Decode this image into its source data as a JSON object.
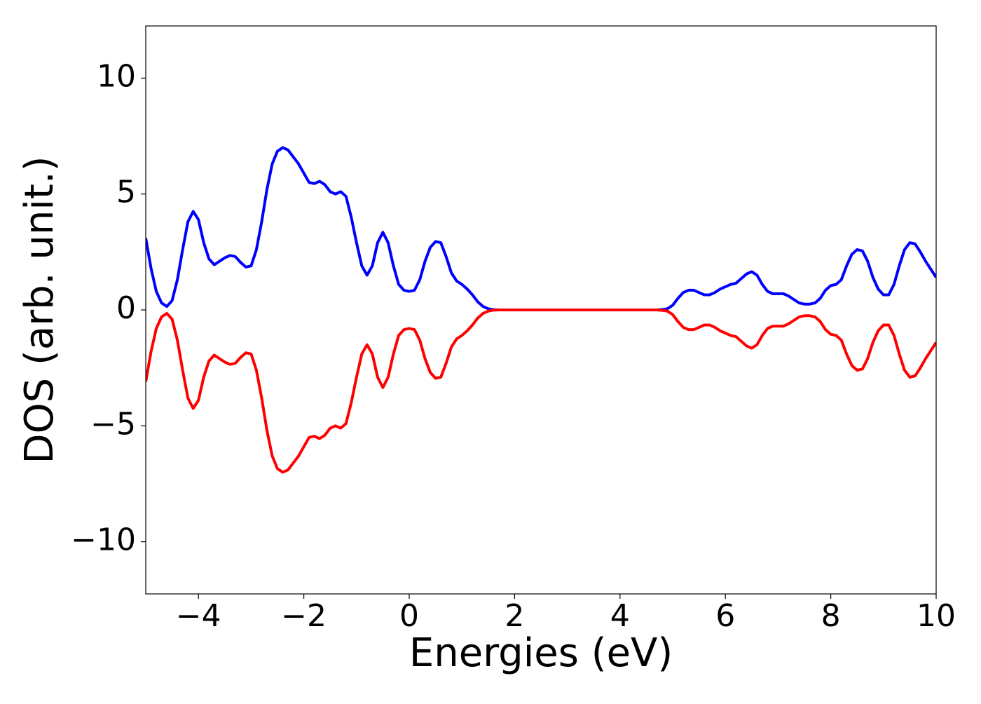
{
  "chart_data": {
    "type": "line",
    "xlabel": "Energies (eV)",
    "ylabel": "DOS (arb. unit.)",
    "x": [
      -5,
      -4.9,
      -4.8,
      -4.7,
      -4.6,
      -4.5,
      -4.4,
      -4.3,
      -4.2,
      -4.1,
      -4,
      -3.9,
      -3.8,
      -3.7,
      -3.6,
      -3.5,
      -3.4,
      -3.3,
      -3.2,
      -3.1,
      -3,
      -2.9,
      -2.8,
      -2.7,
      -2.6,
      -2.5,
      -2.4,
      -2.3,
      -2.2,
      -2.1,
      -2,
      -1.9,
      -1.8,
      -1.7,
      -1.6,
      -1.5,
      -1.4,
      -1.3,
      -1.2,
      -1.1,
      -1,
      -0.9,
      -0.8,
      -0.7,
      -0.6,
      -0.5,
      -0.4,
      -0.3,
      -0.2,
      -0.1,
      0,
      0.1,
      0.2,
      0.3,
      0.4,
      0.5,
      0.6,
      0.7,
      0.8,
      0.9,
      1,
      1.1,
      1.2,
      1.3,
      1.4,
      1.5,
      1.6,
      1.7,
      1.8,
      1.9,
      2,
      2.1,
      2.2,
      2.3,
      2.4,
      2.5,
      2.6,
      2.7,
      2.8,
      2.9,
      3,
      3.1,
      3.2,
      3.3,
      3.4,
      3.5,
      3.6,
      3.7,
      3.8,
      3.9,
      4,
      4.1,
      4.2,
      4.3,
      4.4,
      4.5,
      4.6,
      4.7,
      4.8,
      4.9,
      5,
      5.1,
      5.2,
      5.3,
      5.4,
      5.5,
      5.6,
      5.7,
      5.8,
      5.9,
      6,
      6.1,
      6.2,
      6.3,
      6.4,
      6.5,
      6.6,
      6.7,
      6.8,
      6.9,
      7,
      7.1,
      7.2,
      7.3,
      7.4,
      7.5,
      7.6,
      7.7,
      7.8,
      7.9,
      8,
      8.1,
      8.2,
      8.3,
      8.4,
      8.5,
      8.6,
      8.7,
      8.8,
      8.9,
      9,
      9.1,
      9.2,
      9.3,
      9.4,
      9.5,
      9.6,
      9.7,
      9.8,
      9.9,
      10
    ],
    "series": [
      {
        "color": "#0000ff",
        "values": [
          3.1,
          1.8,
          0.8,
          0.3,
          0.15,
          0.4,
          1.3,
          2.6,
          3.8,
          4.25,
          3.9,
          2.9,
          2.2,
          1.95,
          2.1,
          2.25,
          2.35,
          2.3,
          2.05,
          1.85,
          1.9,
          2.6,
          3.8,
          5.2,
          6.3,
          6.85,
          7.0,
          6.9,
          6.6,
          6.3,
          5.9,
          5.5,
          5.45,
          5.55,
          5.4,
          5.1,
          5.0,
          5.1,
          4.9,
          4.0,
          2.9,
          1.9,
          1.5,
          1.9,
          2.9,
          3.35,
          2.9,
          1.9,
          1.1,
          0.85,
          0.8,
          0.85,
          1.3,
          2.1,
          2.7,
          2.95,
          2.9,
          2.3,
          1.6,
          1.25,
          1.1,
          0.9,
          0.65,
          0.35,
          0.15,
          0.05,
          0.01,
          0,
          0,
          0,
          0,
          0,
          0,
          0,
          0,
          0,
          0,
          0,
          0,
          0,
          0,
          0,
          0,
          0,
          0,
          0,
          0,
          0,
          0,
          0,
          0,
          0,
          0,
          0,
          0,
          0,
          0,
          0,
          0.02,
          0.05,
          0.2,
          0.5,
          0.75,
          0.85,
          0.85,
          0.75,
          0.65,
          0.65,
          0.75,
          0.9,
          1.0,
          1.1,
          1.15,
          1.35,
          1.55,
          1.65,
          1.5,
          1.1,
          0.8,
          0.7,
          0.7,
          0.7,
          0.6,
          0.45,
          0.3,
          0.25,
          0.25,
          0.3,
          0.5,
          0.85,
          1.05,
          1.1,
          1.3,
          1.9,
          2.4,
          2.6,
          2.55,
          2.1,
          1.4,
          0.9,
          0.65,
          0.65,
          1.1,
          1.9,
          2.6,
          2.9,
          2.85,
          2.5,
          2.1,
          1.75,
          1.4
        ]
      },
      {
        "color": "#ff0000",
        "values": [
          -3.1,
          -1.8,
          -0.8,
          -0.3,
          -0.15,
          -0.4,
          -1.3,
          -2.6,
          -3.8,
          -4.25,
          -3.9,
          -2.9,
          -2.2,
          -1.95,
          -2.1,
          -2.25,
          -2.35,
          -2.3,
          -2.05,
          -1.85,
          -1.9,
          -2.6,
          -3.8,
          -5.2,
          -6.3,
          -6.85,
          -7.0,
          -6.9,
          -6.6,
          -6.3,
          -5.9,
          -5.5,
          -5.45,
          -5.55,
          -5.4,
          -5.1,
          -5.0,
          -5.1,
          -4.9,
          -4.0,
          -2.9,
          -1.9,
          -1.5,
          -1.9,
          -2.9,
          -3.35,
          -2.9,
          -1.9,
          -1.1,
          -0.85,
          -0.8,
          -0.85,
          -1.3,
          -2.1,
          -2.7,
          -2.95,
          -2.9,
          -2.3,
          -1.6,
          -1.25,
          -1.1,
          -0.9,
          -0.65,
          -0.35,
          -0.15,
          -0.05,
          -0.01,
          0,
          0,
          0,
          0,
          0,
          0,
          0,
          0,
          0,
          0,
          0,
          0,
          0,
          0,
          0,
          0,
          0,
          0,
          0,
          0,
          0,
          0,
          0,
          0,
          0,
          0,
          0,
          0,
          0,
          0,
          0,
          -0.02,
          -0.05,
          -0.2,
          -0.5,
          -0.75,
          -0.85,
          -0.85,
          -0.75,
          -0.65,
          -0.65,
          -0.75,
          -0.9,
          -1.0,
          -1.1,
          -1.15,
          -1.35,
          -1.55,
          -1.65,
          -1.5,
          -1.1,
          -0.8,
          -0.7,
          -0.7,
          -0.7,
          -0.6,
          -0.45,
          -0.3,
          -0.25,
          -0.25,
          -0.3,
          -0.5,
          -0.85,
          -1.05,
          -1.1,
          -1.3,
          -1.9,
          -2.4,
          -2.6,
          -2.55,
          -2.1,
          -1.4,
          -0.9,
          -0.65,
          -0.65,
          -1.1,
          -1.9,
          -2.6,
          -2.9,
          -2.85,
          -2.5,
          -2.1,
          -1.75,
          -1.4
        ]
      }
    ],
    "xlim": [
      -5,
      10
    ],
    "xticks": [
      {
        "value": -4,
        "label": "−4"
      },
      {
        "value": -2,
        "label": "−2"
      },
      0,
      2,
      4,
      6,
      8,
      10
    ],
    "ylim": [
      -12.25,
      12.25
    ],
    "yticks": [
      {
        "value": -10,
        "label": "−10"
      },
      {
        "value": -5,
        "label": "−5"
      },
      0,
      5,
      10
    ]
  }
}
